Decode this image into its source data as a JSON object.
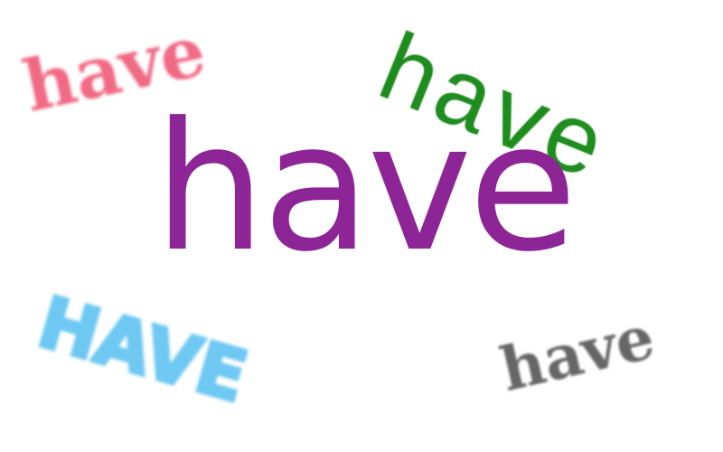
{
  "words": {
    "center": {
      "text": "have",
      "color": "#8E2596"
    },
    "top_left": {
      "text": "have",
      "color": "#F06A84"
    },
    "top_right": {
      "text": "have",
      "color": "#1E8C1E"
    },
    "bottom_left": {
      "text": "HAVE",
      "color": "#6EC8F2"
    },
    "bottom_right": {
      "text": "have",
      "color": "#666666"
    }
  }
}
